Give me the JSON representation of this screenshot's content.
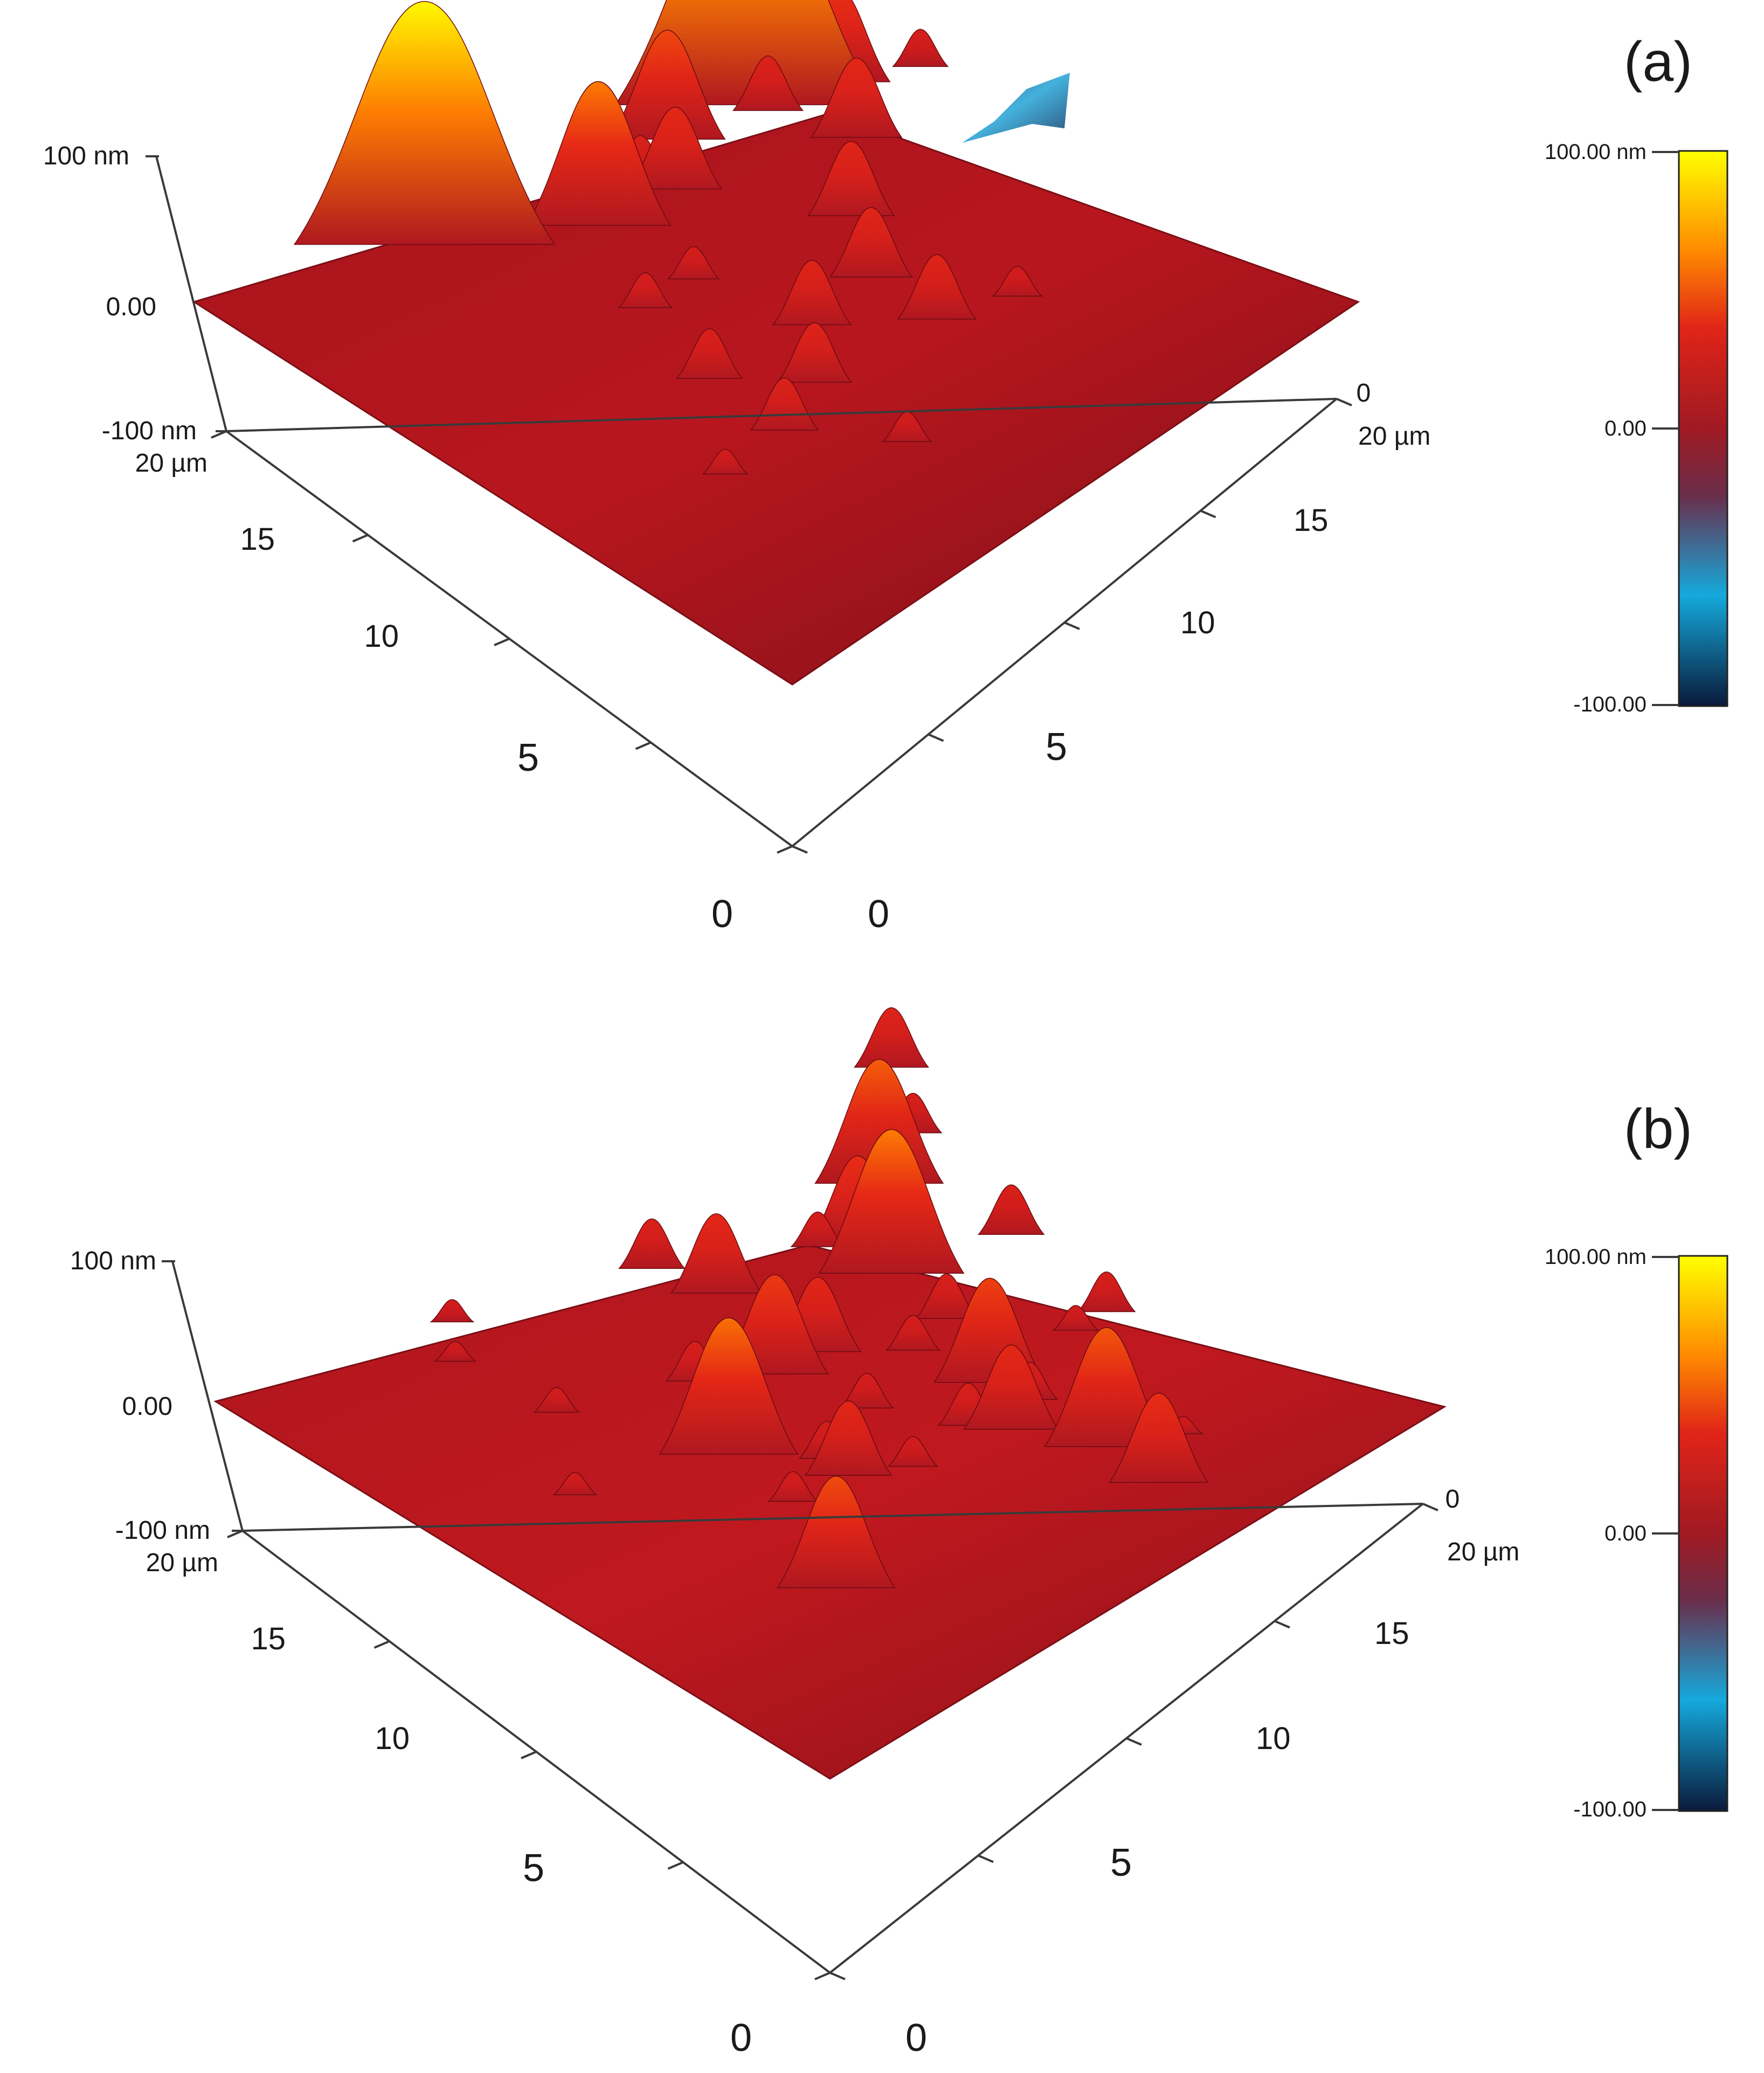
{
  "chart_data": [
    {
      "type": "surface",
      "panel_label": "(a)",
      "title": "",
      "z_axis": {
        "unit": "nm",
        "range": [
          -100,
          100
        ],
        "tick_labels": [
          "100 nm",
          "0.00",
          "-100 nm"
        ]
      },
      "left_axis": {
        "unit": "µm",
        "range": [
          0,
          20
        ],
        "tick_labels": [
          "20 µm",
          "15",
          "10",
          "5",
          "0"
        ]
      },
      "right_axis": {
        "unit": "µm",
        "range": [
          0,
          20
        ],
        "tick_labels": [
          "0",
          "20 µm",
          "15",
          "10",
          "5",
          "0"
        ]
      },
      "colorbar": {
        "range": [
          -100,
          100
        ],
        "tick_labels": [
          "100.00 nm",
          "0.00",
          "-100.00"
        ],
        "colors": [
          "#0a1a3a",
          "#15a9dc",
          "#7a2030",
          "#d0181c",
          "#ff8a00",
          "#ffff00"
        ]
      },
      "peaks": [
        {
          "x": 14.8,
          "y": 15.5,
          "height_nm": 100
        },
        {
          "x": 5.5,
          "y": 17.5,
          "height_nm": 98
        },
        {
          "x": 9.0,
          "y": 15.0,
          "height_nm": 58
        },
        {
          "x": 12.5,
          "y": 16.0,
          "height_nm": 44
        },
        {
          "x": 11.3,
          "y": 14.6,
          "height_nm": 33
        },
        {
          "x": 17.0,
          "y": 14.5,
          "height_nm": 37
        },
        {
          "x": 15.8,
          "y": 12.8,
          "height_nm": 32
        },
        {
          "x": 13.6,
          "y": 10.9,
          "height_nm": 30
        },
        {
          "x": 12.3,
          "y": 6.8,
          "height_nm": 26
        },
        {
          "x": 12.3,
          "y": 9.0,
          "height_nm": 28
        },
        {
          "x": 10.0,
          "y": 8.8,
          "height_nm": 26
        },
        {
          "x": 8.5,
          "y": 7.3,
          "height_nm": 24
        },
        {
          "x": 6.7,
          "y": 6.6,
          "height_nm": 21
        },
        {
          "x": 6.8,
          "y": 9.2,
          "height_nm": 20
        },
        {
          "x": 10.8,
          "y": 15.3,
          "height_nm": 20
        },
        {
          "x": 15.0,
          "y": 15.0,
          "height_nm": 22
        },
        {
          "x": 18.2,
          "y": 17.5,
          "height_nm": 18
        },
        {
          "x": 18.8,
          "y": 13.5,
          "height_nm": 15
        },
        {
          "x": 7.6,
          "y": 12.1,
          "height_nm": 14
        },
        {
          "x": 9.2,
          "y": 12.0,
          "height_nm": 13
        },
        {
          "x": 14.3,
          "y": 6.0,
          "height_nm": 12
        },
        {
          "x": 8.5,
          "y": 4.2,
          "height_nm": 12
        },
        {
          "x": 4.5,
          "y": 6.5,
          "height_nm": 10
        }
      ],
      "pits": [
        {
          "x": 20.0,
          "y": 10.0,
          "depth_nm": -60
        }
      ]
    },
    {
      "type": "surface",
      "panel_label": "(b)",
      "title": "",
      "z_axis": {
        "unit": "nm",
        "range": [
          -100,
          100
        ],
        "tick_labels": [
          "100 nm",
          "0.00",
          "-100 nm"
        ]
      },
      "left_axis": {
        "unit": "µm",
        "range": [
          0,
          20
        ],
        "tick_labels": [
          "20 µm",
          "15",
          "10",
          "5",
          "0"
        ]
      },
      "right_axis": {
        "unit": "µm",
        "range": [
          0,
          20
        ],
        "tick_labels": [
          "0",
          "20 µm",
          "15",
          "10",
          "5",
          "0"
        ]
      },
      "colorbar": {
        "range": [
          -100,
          100
        ],
        "tick_labels": [
          "100.00 nm",
          "0.00",
          "-100.00"
        ],
        "colors": [
          "#0a1a3a",
          "#15a9dc",
          "#7a2030",
          "#d0181c",
          "#ff8a00",
          "#ffff00"
        ]
      },
      "peaks": [
        {
          "x": 14.5,
          "y": 12.5,
          "height_nm": 58
        },
        {
          "x": 7.0,
          "y": 10.3,
          "height_nm": 55
        },
        {
          "x": 16.7,
          "y": 15.1,
          "height_nm": 50
        },
        {
          "x": 13.4,
          "y": 4.4,
          "height_nm": 48
        },
        {
          "x": 5.2,
          "y": 5.0,
          "height_nm": 45
        },
        {
          "x": 13.2,
          "y": 8.0,
          "height_nm": 42
        },
        {
          "x": 9.9,
          "y": 11.7,
          "height_nm": 40
        },
        {
          "x": 14.7,
          "y": 13.8,
          "height_nm": 36
        },
        {
          "x": 13.3,
          "y": 2.6,
          "height_nm": 36
        },
        {
          "x": 12.3,
          "y": 6.4,
          "height_nm": 34
        },
        {
          "x": 11.1,
          "y": 14.8,
          "height_nm": 32
        },
        {
          "x": 8.4,
          "y": 7.8,
          "height_nm": 30
        },
        {
          "x": 11.2,
          "y": 11.6,
          "height_nm": 30
        },
        {
          "x": 20.0,
          "y": 18.0,
          "height_nm": 24
        },
        {
          "x": 17.5,
          "y": 11.6,
          "height_nm": 20
        },
        {
          "x": 10.7,
          "y": 16.5,
          "height_nm": 20
        },
        {
          "x": 14.2,
          "y": 10.4,
          "height_nm": 18
        },
        {
          "x": 11.7,
          "y": 7.2,
          "height_nm": 17
        },
        {
          "x": 13.4,
          "y": 6.9,
          "height_nm": 15
        },
        {
          "x": 17.0,
          "y": 8.0,
          "height_nm": 16
        },
        {
          "x": 14.0,
          "y": 14.4,
          "height_nm": 14
        },
        {
          "x": 12.8,
          "y": 10.1,
          "height_nm": 14
        },
        {
          "x": 18.6,
          "y": 15.9,
          "height_nm": 16
        },
        {
          "x": 8.4,
          "y": 12.8,
          "height_nm": 16
        },
        {
          "x": 8.5,
          "y": 8.6,
          "height_nm": 15
        },
        {
          "x": 10.5,
          "y": 9.3,
          "height_nm": 14
        },
        {
          "x": 9.7,
          "y": 7.0,
          "height_nm": 12
        },
        {
          "x": 6.8,
          "y": 8.0,
          "height_nm": 12
        },
        {
          "x": 5.3,
          "y": 14.2,
          "height_nm": 10
        },
        {
          "x": 6.0,
          "y": 18.3,
          "height_nm": 9
        },
        {
          "x": 5.0,
          "y": 17.2,
          "height_nm": 8
        },
        {
          "x": 3.4,
          "y": 11.7,
          "height_nm": 9
        },
        {
          "x": 16.0,
          "y": 8.0,
          "height_nm": 10
        },
        {
          "x": 13.0,
          "y": 5.0,
          "height_nm": 8
        },
        {
          "x": 15.0,
          "y": 3.5,
          "height_nm": 7
        }
      ],
      "pits": []
    }
  ]
}
